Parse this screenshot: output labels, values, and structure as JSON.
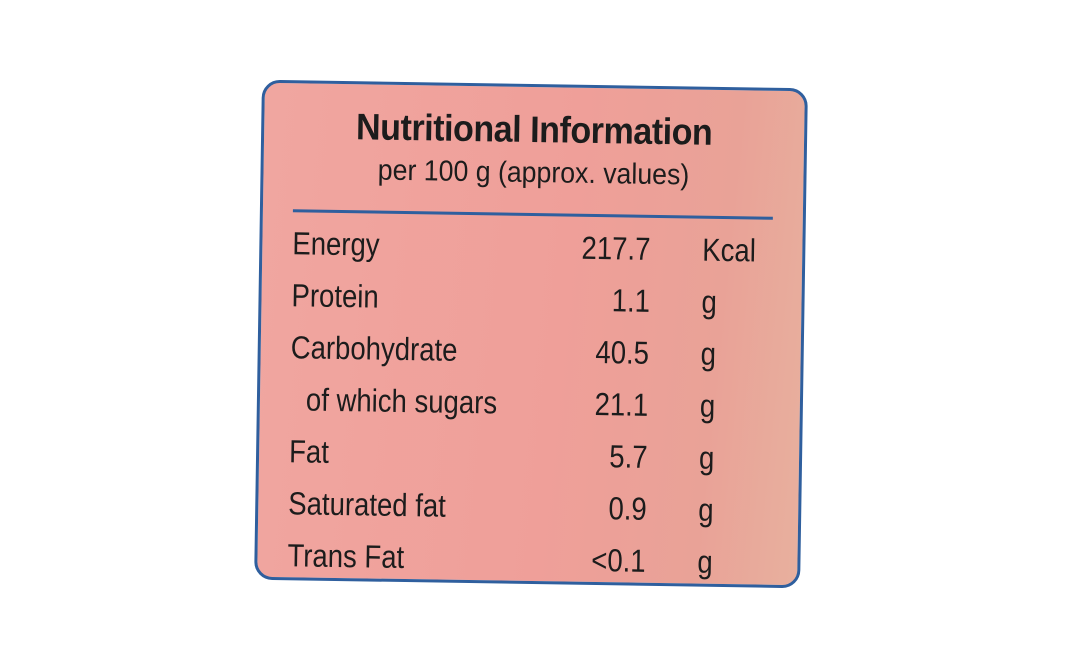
{
  "label": {
    "title": "Nutritional Information",
    "subtitle": "per 100 g (approx. values)",
    "rows": [
      {
        "name": "Energy",
        "value": "217.7",
        "unit": "Kcal"
      },
      {
        "name": "Protein",
        "value": "1.1",
        "unit": "g"
      },
      {
        "name": "Carbohydrate",
        "value": "40.5",
        "unit": "g"
      },
      {
        "name": "of which sugars",
        "value": "21.1",
        "unit": "g"
      },
      {
        "name": "Fat",
        "value": "5.7",
        "unit": "g"
      },
      {
        "name": "Saturated fat",
        "value": "0.9",
        "unit": "g"
      },
      {
        "name": "Trans Fat",
        "value": "<0.1",
        "unit": "g"
      }
    ]
  },
  "colors": {
    "background": "#f0a6a0",
    "border": "#2f5f9e",
    "text": "#1c1c1c"
  }
}
